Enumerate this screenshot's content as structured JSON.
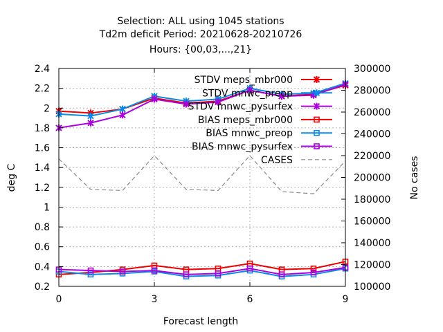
{
  "chart_data": {
    "type": "line",
    "title_lines": [
      "Selection: ALL using  1045 stations",
      "Td2m deficit   Period: 20210628-20210726",
      "Hours: {00,03,...,21}"
    ],
    "xlabel": "Forecast length",
    "ylabel": "deg C",
    "y2label": "No cases",
    "xlim": [
      0,
      9
    ],
    "ylim": [
      0.2,
      2.4
    ],
    "y2lim": [
      100000,
      300000
    ],
    "x_ticks": [
      "0",
      "3",
      "6",
      "9"
    ],
    "y_ticks": [
      "0.2",
      "0.4",
      "0.6",
      "0.8",
      "1",
      "1.2",
      "1.4",
      "1.6",
      "1.8",
      "2",
      "2.2",
      "2.4"
    ],
    "y2_ticks": [
      "100000",
      "120000",
      "140000",
      "160000",
      "180000",
      "200000",
      "220000",
      "240000",
      "260000",
      "280000",
      "300000"
    ],
    "grid": true,
    "legend_position": "top-right",
    "x": [
      0,
      1,
      2,
      3,
      4,
      5,
      6,
      7,
      8,
      9
    ],
    "series": [
      {
        "name": "STDV meps_mbr000",
        "color": "#ee0000",
        "marker": "x-star",
        "axis": "y1",
        "values": [
          1.97,
          1.95,
          1.99,
          2.1,
          2.05,
          2.07,
          2.18,
          2.12,
          2.14,
          2.23
        ]
      },
      {
        "name": "STDV mnwc_preop",
        "color": "#0a8ae4",
        "marker": "x-star",
        "axis": "y1",
        "values": [
          1.94,
          1.92,
          1.99,
          2.12,
          2.07,
          2.09,
          2.2,
          2.14,
          2.15,
          2.25
        ]
      },
      {
        "name": "STDV mnwc_pysurfex",
        "color": "#aa00dd",
        "marker": "x-star",
        "axis": "y1",
        "values": [
          1.8,
          1.85,
          1.93,
          2.09,
          2.04,
          2.06,
          2.18,
          2.12,
          2.13,
          2.24
        ]
      },
      {
        "name": "BIAS meps_mbr000",
        "color": "#ee0000",
        "marker": "square",
        "axis": "y1",
        "values": [
          0.32,
          0.34,
          0.37,
          0.41,
          0.37,
          0.38,
          0.43,
          0.37,
          0.38,
          0.45
        ]
      },
      {
        "name": "BIAS mnwc_preop",
        "color": "#0a8ae4",
        "marker": "square",
        "axis": "y1",
        "values": [
          0.35,
          0.32,
          0.33,
          0.35,
          0.3,
          0.31,
          0.36,
          0.3,
          0.32,
          0.38
        ]
      },
      {
        "name": "BIAS mnwc_pysurfex",
        "color": "#aa00dd",
        "marker": "square",
        "axis": "y1",
        "values": [
          0.37,
          0.36,
          0.35,
          0.36,
          0.32,
          0.33,
          0.38,
          0.32,
          0.34,
          0.39
        ]
      },
      {
        "name": "CASES",
        "color": "#888888",
        "marker": "none",
        "dash": true,
        "axis": "y2",
        "values": [
          217000,
          189000,
          188000,
          220000,
          189000,
          188000,
          220000,
          187000,
          185000,
          215000
        ]
      }
    ]
  }
}
